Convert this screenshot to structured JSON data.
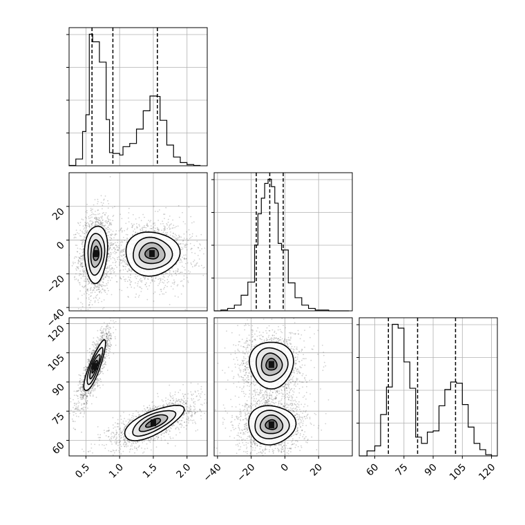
{
  "chart_data": {
    "type": "corner",
    "grid": true,
    "parameters": [
      {
        "range": [
          0.25,
          2.3
        ],
        "ticks": [
          "0.5",
          "1.0",
          "1.5",
          "2.0"
        ],
        "tick_values": [
          0.5,
          1.0,
          1.5,
          2.0
        ],
        "quantiles": [
          0.59,
          0.9,
          1.56
        ]
      },
      {
        "range": [
          -42,
          40
        ],
        "ticks": [
          "−40",
          "−20",
          "0",
          "20"
        ],
        "tick_values": [
          -40,
          -20,
          0,
          20
        ],
        "quantiles": [
          -17,
          -9,
          -1
        ]
      },
      {
        "range": [
          52,
          123
        ],
        "ticks": [
          "60",
          "75",
          "90",
          "105",
          "120"
        ],
        "tick_values": [
          60,
          75,
          90,
          105,
          120
        ],
        "quantiles": [
          67,
          82,
          101.5
        ]
      }
    ],
    "histograms": [
      {
        "param": 0,
        "edges": [
          0.25,
          0.35,
          0.45,
          0.5,
          0.55,
          0.6,
          0.7,
          0.8,
          0.85,
          0.9,
          1.0,
          1.05,
          1.15,
          1.25,
          1.35,
          1.45,
          1.55,
          1.6,
          1.7,
          1.8,
          1.9,
          2.0,
          2.1,
          2.2
        ],
        "counts": [
          1,
          17,
          86,
          128,
          330,
          311,
          260,
          116,
          33,
          31,
          27,
          48,
          56,
          92,
          138,
          175,
          174,
          114,
          52,
          22,
          8,
          3,
          1
        ]
      },
      {
        "param": 1,
        "edges": [
          -42,
          -38,
          -34,
          -30,
          -26,
          -22,
          -18,
          -16,
          -14,
          -12,
          -10,
          -8,
          -6,
          -4,
          -2,
          2,
          6,
          10,
          14,
          18,
          22,
          26,
          30,
          34,
          38
        ],
        "counts": [
          0,
          1,
          3,
          7,
          19,
          35,
          80,
          118,
          137,
          155,
          160,
          151,
          131,
          82,
          74,
          34,
          16,
          7,
          3,
          1,
          1,
          0,
          0,
          0
        ]
      },
      {
        "param": 2,
        "edges": [
          52,
          56,
          60,
          63,
          66,
          69,
          72,
          75,
          78,
          81,
          84,
          87,
          90,
          93,
          96,
          99,
          102,
          105,
          108,
          111,
          114,
          117,
          120,
          123
        ],
        "counts": [
          0,
          4,
          8,
          33,
          55,
          105,
          102,
          75,
          54,
          15,
          10,
          19,
          20,
          40,
          53,
          59,
          58,
          41,
          23,
          10,
          5,
          1,
          0
        ]
      }
    ],
    "density_panels": [
      {
        "x_param": 0,
        "y_param": 1,
        "components": [
          {
            "center": [
              0.65,
              -8
            ],
            "sd": [
              0.085,
              8.5
            ],
            "rho": 0.1,
            "n": 1500
          },
          {
            "center": [
              1.48,
              -8
            ],
            "sd": [
              0.2,
              6.5
            ],
            "rho": 0.0,
            "n": 1400
          }
        ]
      },
      {
        "x_param": 0,
        "y_param": 2,
        "components": [
          {
            "center": [
              0.63,
              98
            ],
            "sd": [
              0.08,
              6.5
            ],
            "rho": 0.85,
            "n": 1500
          },
          {
            "center": [
              1.5,
              69
            ],
            "sd": [
              0.22,
              4.5
            ],
            "rho": 0.7,
            "n": 1400
          }
        ]
      },
      {
        "x_param": 1,
        "y_param": 2,
        "components": [
          {
            "center": [
              -8,
              99
            ],
            "sd": [
              6.5,
              6.0
            ],
            "rho": 0.0,
            "n": 1400
          },
          {
            "center": [
              -8,
              68
            ],
            "sd": [
              7.0,
              5.0
            ],
            "rho": 0.0,
            "n": 1500
          }
        ]
      }
    ]
  }
}
